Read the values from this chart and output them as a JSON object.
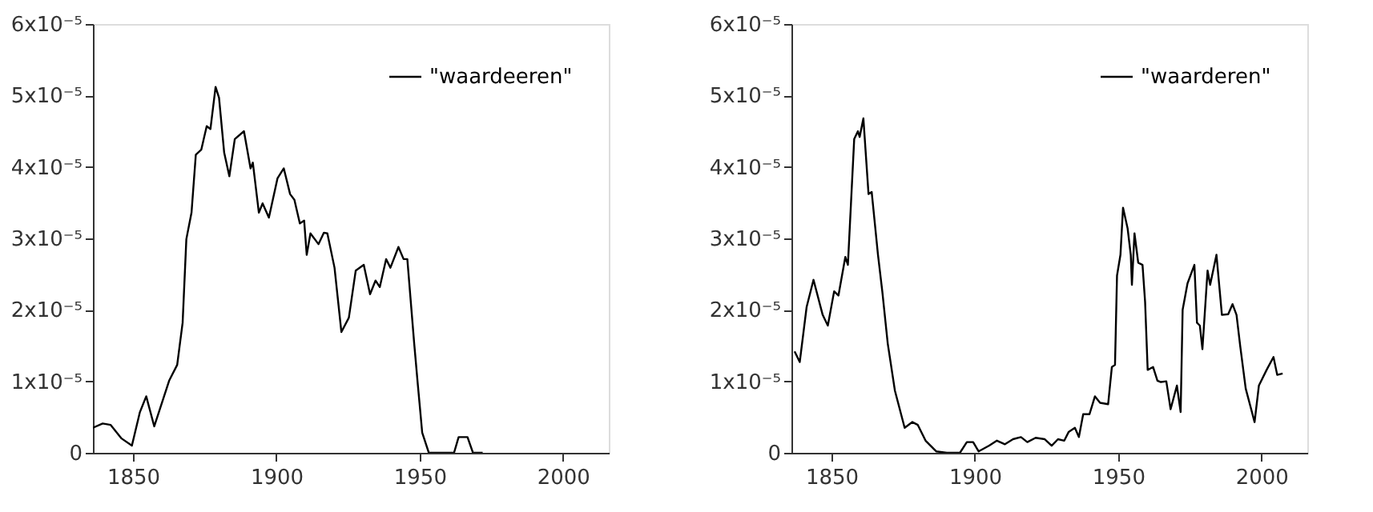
{
  "chart_data": [
    {
      "type": "line",
      "legend": "top right",
      "grid": false,
      "xlim": [
        1836,
        2016
      ],
      "xticks": [
        1850,
        1900,
        1950,
        2000
      ],
      "ylim": [
        0,
        6e-05
      ],
      "yticks": [
        0,
        {
          "value": 1e-05,
          "label": "1x10⁻⁵"
        },
        {
          "value": 2e-05,
          "label": "2x10⁻⁵"
        },
        {
          "value": 3e-05,
          "label": "3x10⁻⁵"
        },
        {
          "value": 4e-05,
          "label": "4x10⁻⁵"
        },
        {
          "value": 5e-05,
          "label": "5x10⁻⁵"
        },
        {
          "value": 6e-05,
          "label": "6x10⁻⁵"
        }
      ],
      "series": [
        {
          "name": "\"waardeeren\"",
          "color": "#000000",
          "x": [
            1836,
            1839.4,
            1842.2,
            1846,
            1849.6,
            1852.4,
            1854.6,
            1857.4,
            1862.6,
            1865.4,
            1867.3,
            1868.6,
            1870.4,
            1871.9,
            1873.8,
            1875.7,
            1877,
            1878.8,
            1880,
            1881.8,
            1883.6,
            1885.5,
            1888.7,
            1891,
            1891.8,
            1893.9,
            1895.2,
            1897.4,
            1900.4,
            1902.6,
            1904.8,
            1906.3,
            1908.2,
            1909.7,
            1910.6,
            1911.9,
            1914.7,
            1916.6,
            1917.8,
            1920.3,
            1922.7,
            1925.3,
            1927.7,
            1930.5,
            1932.7,
            1934.6,
            1936.1,
            1938.3,
            1939.8,
            1942.6,
            1944.4,
            1945.7,
            1948.1,
            1949.4,
            1950.9,
            1953.2,
            1958,
            1962,
            1963.6,
            1966.7,
            1968.6,
            1972
          ],
          "values": [
            3.5e-06,
            4.1e-06,
            3.9e-06,
            2e-06,
            1e-06,
            5.7e-06,
            7.9e-06,
            3.7e-06,
            1.01e-05,
            1.23e-05,
            1.82e-05,
            2.99e-05,
            3.36e-05,
            4.17e-05,
            4.24e-05,
            4.57e-05,
            4.53e-05,
            5.12e-05,
            4.97e-05,
            4.2e-05,
            3.87e-05,
            4.39e-05,
            4.5e-05,
            3.98e-05,
            4.06e-05,
            3.36e-05,
            3.49e-05,
            3.29e-05,
            3.84e-05,
            3.98e-05,
            3.62e-05,
            3.54e-05,
            3.21e-05,
            3.25e-05,
            2.77e-05,
            3.07e-05,
            2.92e-05,
            3.08e-05,
            3.07e-05,
            2.59e-05,
            1.69e-05,
            1.89e-05,
            2.55e-05,
            2.63e-05,
            2.22e-05,
            2.41e-05,
            2.32e-05,
            2.71e-05,
            2.59e-05,
            2.88e-05,
            2.71e-05,
            2.71e-05,
            1.53e-05,
            9.4e-06,
            2.8e-06,
            0,
            0,
            0,
            2.2e-06,
            2.2e-06,
            0,
            0
          ]
        }
      ]
    },
    {
      "type": "line",
      "legend": "top right",
      "grid": false,
      "xlim": [
        1836,
        2016
      ],
      "xticks": [
        1850,
        1900,
        1950,
        2000
      ],
      "ylim": [
        0,
        6e-05
      ],
      "yticks": [
        0,
        {
          "value": 1e-05,
          "label": "1x10⁻⁵"
        },
        {
          "value": 2e-05,
          "label": "2x10⁻⁵"
        },
        {
          "value": 3e-05,
          "label": "3x10⁻⁵"
        },
        {
          "value": 4e-05,
          "label": "4x10⁻⁵"
        },
        {
          "value": 5e-05,
          "label": "5x10⁻⁵"
        },
        {
          "value": 6e-05,
          "label": "6x10⁻⁵"
        }
      ],
      "series": [
        {
          "name": "\"waarderen\"",
          "color": "#000000",
          "x": [
            1837.1,
            1838.9,
            1841.3,
            1843.7,
            1846.9,
            1848.7,
            1850.9,
            1852.4,
            1854.8,
            1855.7,
            1857.9,
            1859.2,
            1859.8,
            1861.1,
            1862.9,
            1864,
            1866.2,
            1867.7,
            1869.6,
            1872.1,
            1875.5,
            1878.2,
            1880.1,
            1882.8,
            1886.5,
            1890.2,
            1894.8,
            1897.2,
            1899.4,
            1901.3,
            1905,
            1907.7,
            1910.5,
            1913.3,
            1916.1,
            1918.3,
            1921.2,
            1924.4,
            1926.8,
            1929,
            1931.2,
            1932.7,
            1934.9,
            1936.3,
            1937.8,
            1940,
            1941.9,
            1943.7,
            1946.5,
            1947.8,
            1948.9,
            1949.6,
            1950.8,
            1951.7,
            1953.3,
            1954.4,
            1954.8,
            1955.7,
            1957,
            1958.5,
            1959.4,
            1960.3,
            1962.2,
            1963.7,
            1964.9,
            1966.8,
            1968.3,
            1970.5,
            1971.8,
            1972.5,
            1974.2,
            1976.6,
            1977.5,
            1978.5,
            1979.4,
            1981.2,
            1982.1,
            1984.3,
            1986.2,
            1988.4,
            1989.9,
            1991.3,
            1992.6,
            1994.5,
            1997.6,
            1999.1,
            2001.8,
            2004.2,
            2005.5,
            2007.4
          ],
          "values": [
            1.42e-05,
            1.27e-05,
            2.04e-05,
            2.42e-05,
            1.93e-05,
            1.78e-05,
            2.26e-05,
            2.2e-05,
            2.74e-05,
            2.63e-05,
            4.39e-05,
            4.5e-05,
            4.42e-05,
            4.68e-05,
            3.62e-05,
            3.65e-05,
            2.77e-05,
            2.26e-05,
            1.53e-05,
            8.7e-06,
            3.5e-06,
            4.3e-06,
            3.9e-06,
            1.7e-06,
            2e-07,
            0,
            0,
            1.5e-06,
            1.5e-06,
            2e-07,
            1e-06,
            1.7e-06,
            1.2e-06,
            1.9e-06,
            2.2e-06,
            1.5e-06,
            2.1e-06,
            1.9e-06,
            1e-06,
            1.9e-06,
            1.7e-06,
            2.9e-06,
            3.5e-06,
            2.2e-06,
            5.4e-06,
            5.4e-06,
            7.9e-06,
            7e-06,
            6.8e-06,
            1.2e-05,
            1.23e-05,
            2.48e-05,
            2.77e-05,
            3.43e-05,
            3.14e-05,
            2.77e-05,
            2.35e-05,
            3.07e-05,
            2.66e-05,
            2.63e-05,
            2.11e-05,
            1.16e-05,
            1.2e-05,
            1.01e-05,
            9.9e-06,
            1e-05,
            6.1e-06,
            9.4e-06,
            5.7e-06,
            2e-05,
            2.37e-05,
            2.63e-05,
            1.82e-05,
            1.78e-05,
            1.45e-05,
            2.55e-05,
            2.35e-05,
            2.77e-05,
            1.93e-05,
            1.94e-05,
            2.08e-05,
            1.93e-05,
            1.49e-05,
            9e-06,
            4.3e-06,
            9.4e-06,
            1.16e-05,
            1.34e-05,
            1.09e-05,
            1.11e-05
          ]
        }
      ]
    }
  ]
}
